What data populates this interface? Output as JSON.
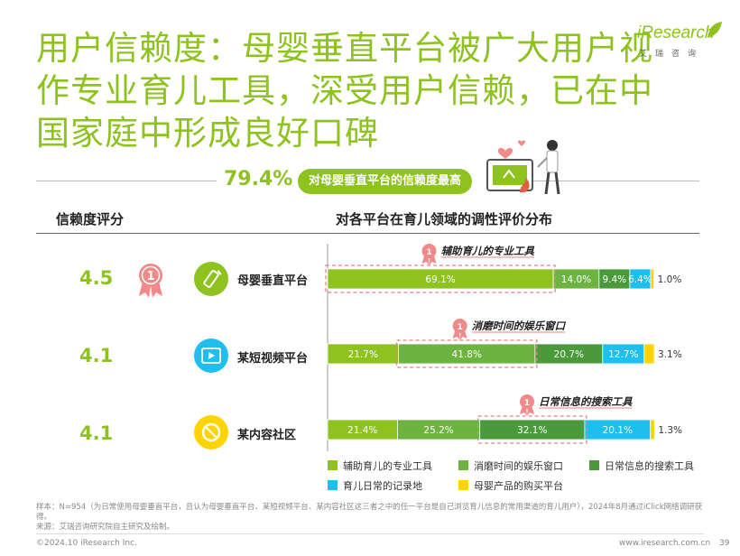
{
  "title": "用户信赖度：母婴垂直平台被广大用户视作专业育儿工具，深受用户信赖，已在中国家庭中形成良好口碑",
  "logo": {
    "wordmark": "iResearch",
    "cn": "艾瑞咨询"
  },
  "highlight": {
    "value": "79.4%",
    "text": "对母婴垂直平台的信赖度最高"
  },
  "headers": {
    "left": "信赖度评分",
    "right": "对各平台在育儿领域的调性评价分布"
  },
  "colors": {
    "green_light": "#8dc21f",
    "green_mid": "#6db33f",
    "green_dark": "#4a9a3c",
    "blue": "#1ebeef",
    "yellow": "#ffd400",
    "medal": "#f08a8a"
  },
  "rows": [
    {
      "score": "4.5",
      "platform": "母婴垂直平台",
      "icon": "bottle-icon",
      "icon_color": "#8dc21f",
      "medal": "1",
      "medal_caption": "辅助育儿的专业工具"
    },
    {
      "score": "4.1",
      "platform": "某短视频平台",
      "icon": "video-play-icon",
      "icon_color": "#1ebeef",
      "medal": "1",
      "medal_caption": "消磨时间的娱乐窗口"
    },
    {
      "score": "4.1",
      "platform": "某内容社区",
      "icon": "community-icon",
      "icon_color": "#ffd400",
      "medal": "1",
      "medal_caption": "日常信息的搜索工具"
    }
  ],
  "chart_data": {
    "type": "bar",
    "orientation": "horizontal",
    "stacked": true,
    "categories": [
      "母婴垂直平台",
      "某短视频平台",
      "某内容社区"
    ],
    "series": [
      {
        "name": "辅助育儿的专业工具",
        "values": [
          69.1,
          21.7,
          21.4
        ],
        "color": "#8dc21f"
      },
      {
        "name": "消磨时间的娱乐窗口",
        "values": [
          14.0,
          41.8,
          25.2
        ],
        "color": "#6db33f"
      },
      {
        "name": "日常信息的搜索工具",
        "values": [
          9.4,
          20.7,
          32.1
        ],
        "color": "#4a9a3c"
      },
      {
        "name": "育儿日常的记录地",
        "values": [
          6.4,
          12.7,
          20.1
        ],
        "color": "#1ebeef"
      },
      {
        "name": "母婴产品的购买平台",
        "values": [
          1.0,
          3.1,
          1.3
        ],
        "color": "#ffd400"
      }
    ],
    "labels": [
      [
        "69.1%",
        "14.0%",
        "9.4%",
        "6.4%",
        "1.0%"
      ],
      [
        "21.7%",
        "41.8%",
        "20.7%",
        "12.7%",
        "3.1%"
      ],
      [
        "21.4%",
        "25.2%",
        "32.1%",
        "20.1%",
        "1.3%"
      ]
    ],
    "highlight_series": [
      0,
      1,
      2
    ],
    "xlim": [
      0,
      100
    ],
    "legend_position": "bottom"
  },
  "notes": {
    "sample": "样本：N=954（为日常使用母婴垂直平台，且认为母婴垂直平台、某短视频平台、某内容社区这三者之中的任一平台是自己浏览育儿信息的常用渠道的育儿用户），2024年8月通过iClick网络调研获得。",
    "source": "来源：艾瑞咨询研究院自主研究及绘制。"
  },
  "footer": {
    "copyright": "©2024.10 iResearch Inc.",
    "url": "www.iresearch.com.cn",
    "page": "39"
  }
}
